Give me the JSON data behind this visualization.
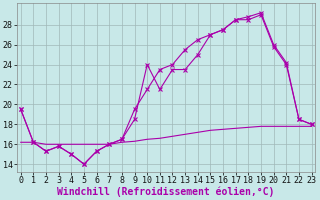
{
  "background_color": "#c8e8e8",
  "grid_color": "#a0b8b8",
  "line_color": "#aa00aa",
  "xlabel": "Windchill (Refroidissement éolien,°C)",
  "xlabel_fontsize": 7,
  "ytick_vals": [
    14,
    16,
    18,
    20,
    22,
    24,
    26,
    28
  ],
  "xtick_vals": [
    0,
    1,
    2,
    3,
    4,
    5,
    6,
    7,
    8,
    9,
    10,
    11,
    12,
    13,
    14,
    15,
    16,
    17,
    18,
    19,
    20,
    21,
    22,
    23
  ],
  "xlim": [
    -0.3,
    23.3
  ],
  "ylim": [
    13.2,
    30.2
  ],
  "s1_x": [
    0,
    1,
    2,
    3,
    4,
    5,
    6,
    7,
    8,
    9,
    10,
    11,
    12,
    13,
    14,
    15,
    16,
    17,
    18,
    19,
    20,
    21,
    22,
    23
  ],
  "s1_y": [
    19.5,
    16.2,
    15.3,
    15.8,
    15.0,
    14.0,
    15.3,
    16.0,
    16.5,
    18.5,
    24.0,
    21.5,
    23.5,
    23.5,
    25.0,
    27.0,
    27.5,
    28.5,
    28.5,
    29.0,
    25.8,
    24.0,
    18.5,
    18.0
  ],
  "s2_x": [
    0,
    1,
    2,
    3,
    4,
    5,
    6,
    7,
    8,
    9,
    10,
    11,
    12,
    13,
    14,
    15,
    16,
    17,
    18,
    19,
    20,
    21,
    22,
    23
  ],
  "s2_y": [
    19.5,
    16.2,
    15.3,
    15.8,
    15.0,
    14.0,
    15.3,
    16.0,
    16.5,
    19.5,
    21.5,
    23.5,
    24.0,
    25.5,
    26.5,
    27.0,
    27.5,
    28.5,
    28.8,
    29.2,
    26.0,
    24.2,
    18.5,
    18.0
  ],
  "s3_x": [
    0,
    1,
    2,
    3,
    4,
    5,
    6,
    7,
    8,
    9,
    10,
    11,
    12,
    13,
    14,
    15,
    16,
    17,
    18,
    19,
    20,
    21,
    22,
    23
  ],
  "s3_y": [
    16.2,
    16.2,
    16.0,
    16.0,
    16.0,
    16.0,
    16.0,
    16.0,
    16.2,
    16.3,
    16.5,
    16.6,
    16.8,
    17.0,
    17.2,
    17.4,
    17.5,
    17.6,
    17.7,
    17.8,
    17.8,
    17.8,
    17.8,
    17.8
  ],
  "tick_fontsize": 6,
  "ylabel_fontsize": 7
}
